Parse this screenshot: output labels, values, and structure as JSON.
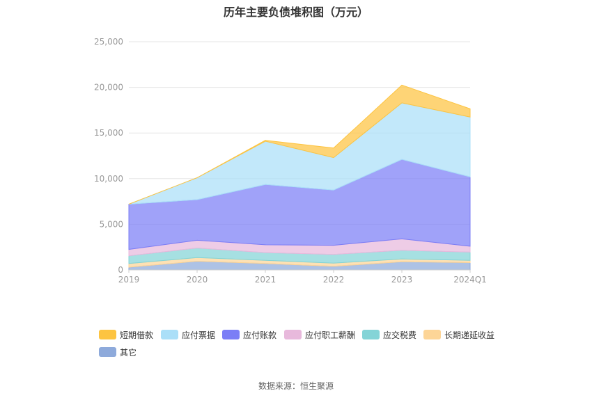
{
  "colors": {
    "axis": "#cccccc",
    "grid": "#e6e6e6",
    "tick_text": "#999999"
  },
  "chart_data": {
    "type": "area",
    "stacked": true,
    "title": "历年主要负债堆积图（万元）",
    "categories": [
      "2019",
      "2020",
      "2021",
      "2022",
      "2023",
      "2024Q1"
    ],
    "ylim": [
      0,
      25000
    ],
    "yticks": [
      0,
      5000,
      10000,
      15000,
      20000,
      25000
    ],
    "ytick_labels": [
      "0",
      "5,000",
      "10,000",
      "15,000",
      "20,000",
      "25,000"
    ],
    "grid": true,
    "legend_position": "bottom",
    "series": [
      {
        "name": "其它",
        "color": "#8eaadb",
        "values": [
          300,
          950,
          700,
          400,
          900,
          800
        ]
      },
      {
        "name": "长期递延收益",
        "color": "#fdd597",
        "values": [
          400,
          400,
          350,
          350,
          300,
          250
        ]
      },
      {
        "name": "应交税费",
        "color": "#84d4d7",
        "values": [
          850,
          1050,
          850,
          950,
          950,
          900
        ]
      },
      {
        "name": "应付职工薪酬",
        "color": "#e8b9dc",
        "values": [
          700,
          850,
          850,
          1000,
          1250,
          650
        ]
      },
      {
        "name": "应付账款",
        "color": "#7b7ef6",
        "values": [
          4950,
          4450,
          6600,
          6050,
          8700,
          7600
        ]
      },
      {
        "name": "应付票据",
        "color": "#abdff8",
        "values": [
          0,
          2400,
          4750,
          3550,
          6200,
          6550
        ]
      },
      {
        "name": "短期借款",
        "color": "#fdc441",
        "values": [
          0,
          0,
          100,
          1050,
          1950,
          900
        ]
      }
    ]
  },
  "legend_order": [
    "短期借款",
    "应付票据",
    "应付账款",
    "应付职工薪酬",
    "应交税费",
    "长期递延收益",
    "其它"
  ],
  "source_note": "数据来源：恒生聚源"
}
